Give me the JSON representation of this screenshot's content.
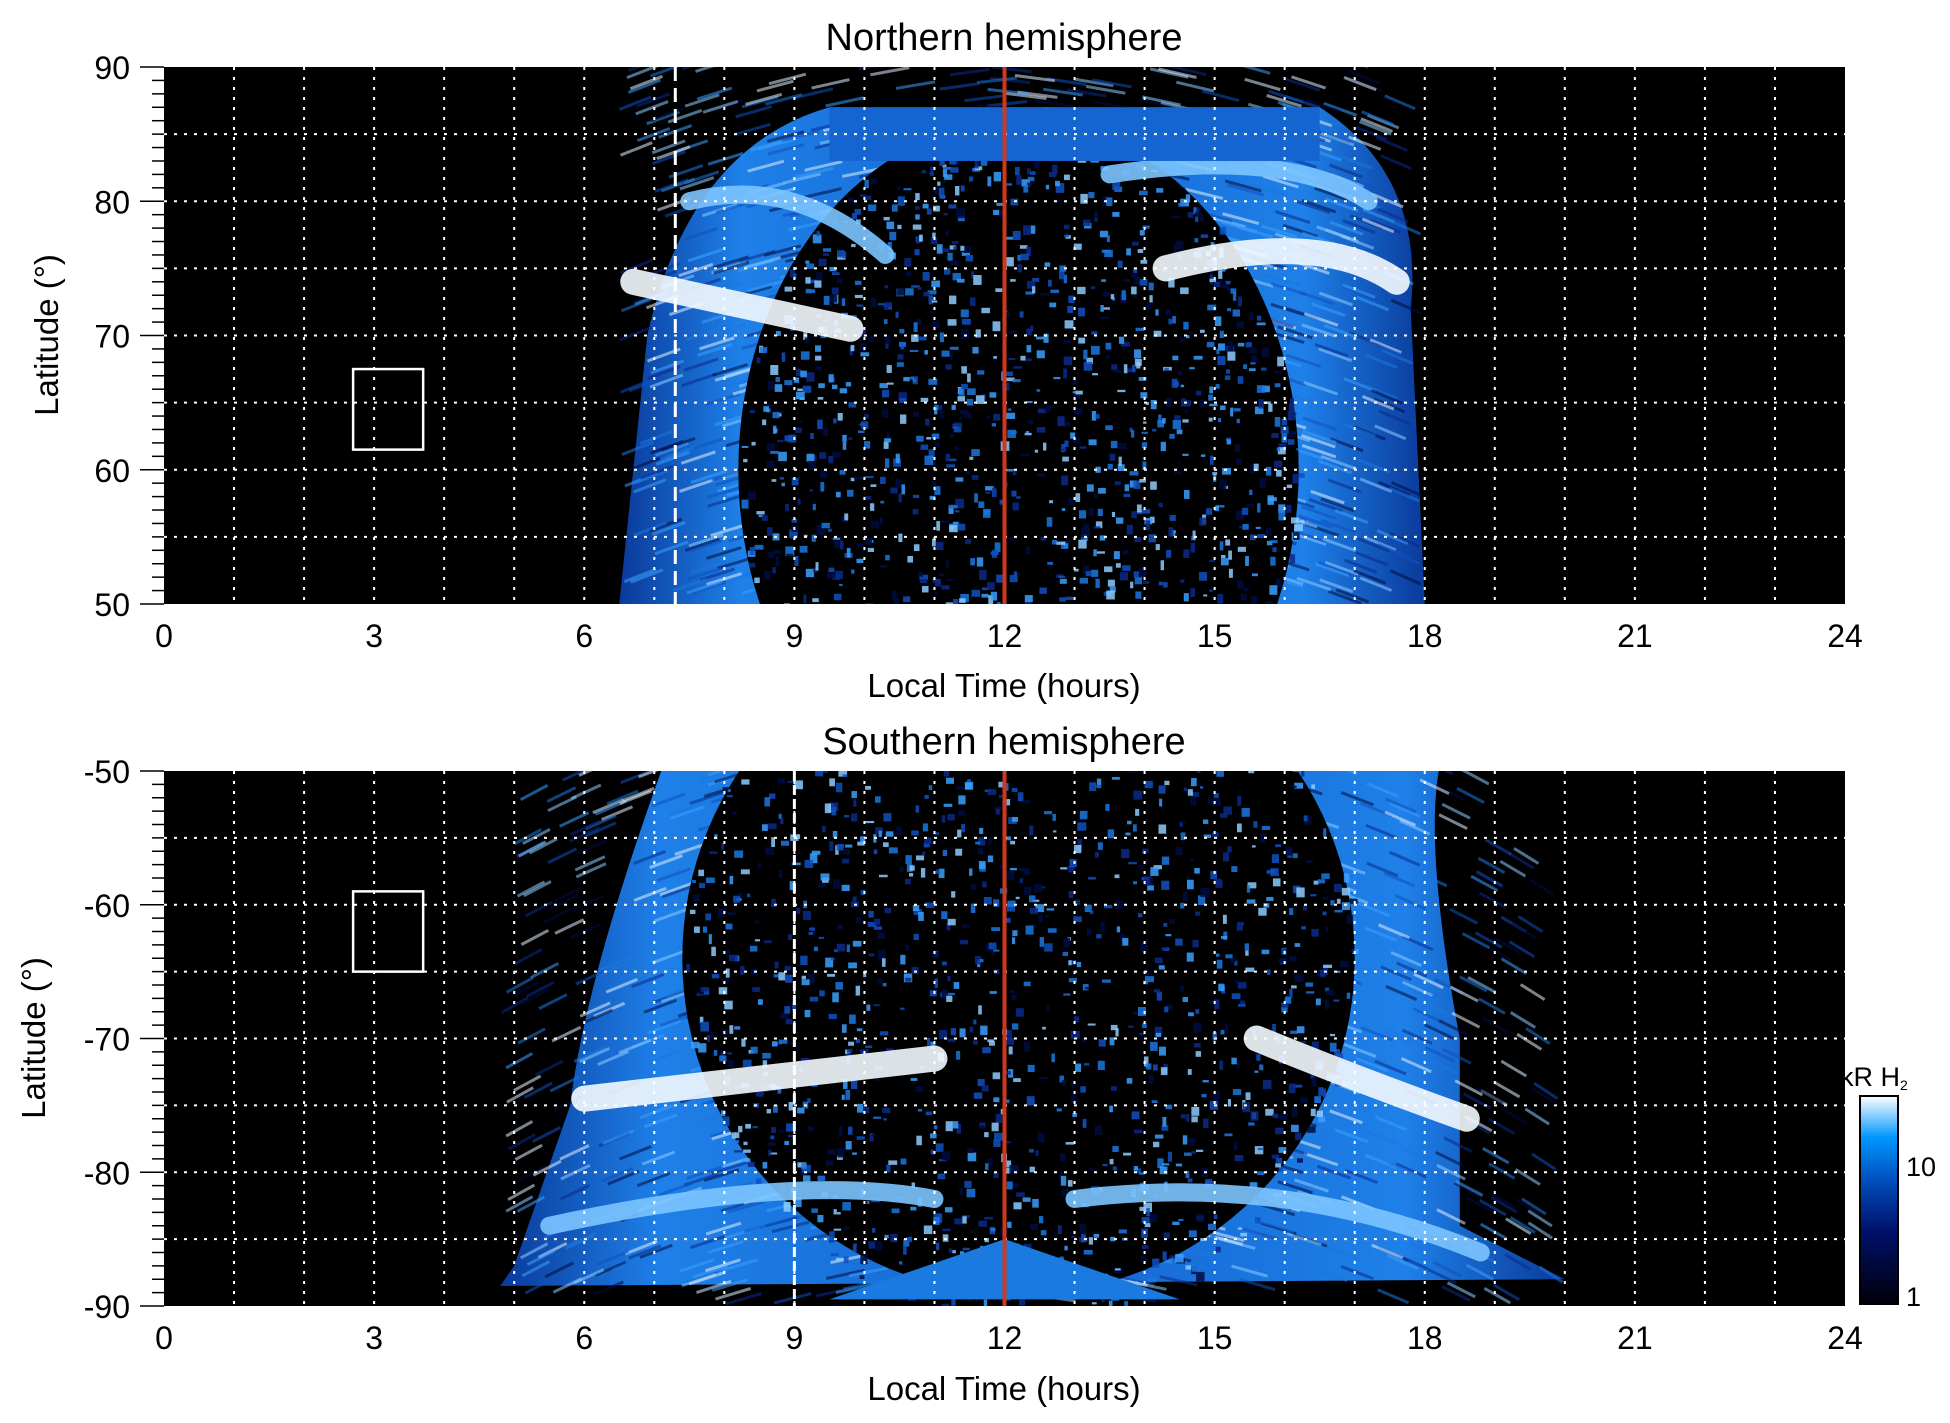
{
  "chart_data": [
    {
      "type": "heatmap",
      "title": "Northern hemisphere",
      "xlabel": "Local Time (hours)",
      "ylabel": "Latitude (°)",
      "xlim": [
        0,
        24
      ],
      "ylim": [
        50,
        90
      ],
      "xticks": [
        "0",
        "3",
        "6",
        "9",
        "12",
        "15",
        "18",
        "21",
        "24"
      ],
      "yticks": [
        "50",
        "60",
        "70",
        "80",
        "90"
      ],
      "grid": "dotted, every 1 h and 5°",
      "markers": {
        "dashed_line_lt": 7.3,
        "red_line_lt": 12,
        "box": {
          "lt": [
            2.7,
            3.7
          ],
          "lat": [
            61.5,
            67.5
          ]
        }
      },
      "emission": {
        "lt_range": [
          6.5,
          18
        ],
        "lat_max": 87,
        "bright_arcs": "dawn ~LT 7-10 at 70-78°, dusk ~LT 14-17.5 at 72-80°"
      }
    },
    {
      "type": "heatmap",
      "title": "Southern hemisphere",
      "xlabel": "Local Time (hours)",
      "ylabel": "Latitude (°)",
      "xlim": [
        0,
        24
      ],
      "ylim": [
        -90,
        -50
      ],
      "xticks": [
        "0",
        "3",
        "6",
        "9",
        "12",
        "15",
        "18",
        "21",
        "24"
      ],
      "yticks": [
        "-90",
        "-80",
        "-70",
        "-60",
        "-50"
      ],
      "grid": "dotted, every 1 h and 5°",
      "markers": {
        "dashed_line_lt": 9,
        "red_line_lt": 12,
        "box": {
          "lt": [
            2.7,
            3.7
          ],
          "lat": [
            -65,
            -59
          ]
        }
      },
      "emission": {
        "lt_range": [
          4.8,
          20
        ],
        "lat_min": -89,
        "bright_arcs": "dawn ~LT 6-11 at -72 to -76°, dusk ~LT 16-18.5 at -70 to -77°"
      }
    }
  ],
  "colorbar": {
    "label": "kR H",
    "label_sub": "2",
    "ticks": [
      "1",
      "10"
    ],
    "range": [
      1,
      30
    ],
    "scale": "log",
    "colors": [
      "#000008",
      "#00106a",
      "#0050c0",
      "#0096ff",
      "#ffffff"
    ]
  },
  "colors": {
    "red_line": "#d0381c",
    "grid": "#ffffff",
    "background": "#000000"
  }
}
